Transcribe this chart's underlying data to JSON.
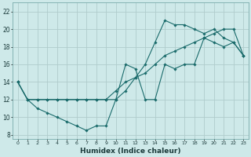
{
  "xlabel": "Humidex (Indice chaleur)",
  "bg_color": "#cee9e9",
  "grid_color": "#b0cccc",
  "line_color": "#1a6b6b",
  "xlim": [
    -0.5,
    23.5
  ],
  "ylim": [
    7.5,
    23.0
  ],
  "xticks": [
    0,
    1,
    2,
    3,
    4,
    5,
    6,
    7,
    8,
    9,
    10,
    11,
    12,
    13,
    14,
    15,
    16,
    17,
    18,
    19,
    20,
    21,
    22,
    23
  ],
  "yticks": [
    8,
    10,
    12,
    14,
    16,
    18,
    20,
    22
  ],
  "line1_x": [
    0,
    1,
    2,
    3,
    4,
    5,
    6,
    7,
    8,
    9,
    10,
    11,
    12,
    13,
    14,
    15,
    16,
    17,
    18,
    19,
    20,
    21,
    22,
    23
  ],
  "line1_y": [
    14,
    12,
    11,
    10.5,
    10,
    9.5,
    9,
    8.5,
    9,
    9,
    12,
    16,
    15.5,
    12,
    12,
    16,
    15.5,
    16,
    16,
    19,
    18.5,
    18,
    18.5,
    17
  ],
  "line2_x": [
    0,
    1,
    2,
    3,
    4,
    5,
    6,
    7,
    8,
    9,
    10,
    11,
    12,
    13,
    14,
    15,
    16,
    17,
    18,
    19,
    20,
    21,
    22,
    23
  ],
  "line2_y": [
    14,
    12,
    12,
    12,
    12,
    12,
    12,
    12,
    12,
    12,
    13,
    14,
    14.5,
    15,
    16,
    17,
    17.5,
    18,
    18.5,
    19,
    19.5,
    20,
    20,
    17
  ],
  "line3_x": [
    0,
    1,
    2,
    3,
    4,
    5,
    6,
    7,
    8,
    9,
    10,
    11,
    12,
    13,
    14,
    15,
    16,
    17,
    18,
    19,
    20,
    21,
    22,
    23
  ],
  "line3_y": [
    14,
    12,
    12,
    12,
    12,
    12,
    12,
    12,
    12,
    12,
    12,
    13,
    14.5,
    16,
    18.5,
    21,
    20.5,
    20.5,
    20,
    19.5,
    20,
    19,
    18.5,
    17
  ]
}
